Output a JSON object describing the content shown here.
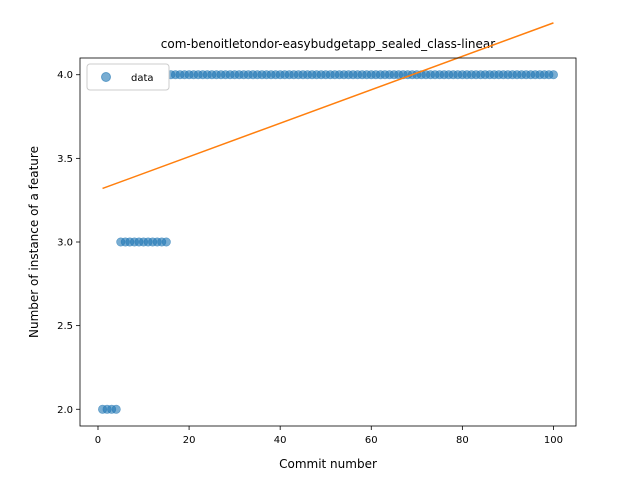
{
  "chart_data": {
    "type": "scatter",
    "title": "com-benoitletondor-easybudgetapp_sealed_class-linear",
    "xlabel": "Commit number",
    "ylabel": "Number of instance of a feature",
    "xlim": [
      -3.95,
      104.95
    ],
    "ylim": [
      1.9,
      4.1
    ],
    "xticks": [
      0,
      20,
      40,
      60,
      80,
      100
    ],
    "yticks": [
      2.0,
      2.5,
      3.0,
      3.5,
      4.0
    ],
    "xtick_labels": [
      "0",
      "20",
      "40",
      "60",
      "80",
      "100"
    ],
    "ytick_labels": [
      "2.0",
      "2.5",
      "3.0",
      "3.5",
      "4.0"
    ],
    "legend": {
      "position": "upper-left",
      "entries": [
        {
          "label": "data",
          "marker": "circle",
          "color": "#1f77b4"
        }
      ]
    },
    "series": [
      {
        "name": "data",
        "kind": "scatter",
        "color": "#1f77b4",
        "alpha": 0.6,
        "segments": [
          {
            "x_from": 1,
            "x_to": 4,
            "y": 2
          },
          {
            "x_from": 5,
            "x_to": 15,
            "y": 3
          },
          {
            "x_from": 16,
            "x_to": 100,
            "y": 4
          }
        ]
      },
      {
        "kind": "line",
        "color": "#ff7f0e",
        "x": [
          1,
          100
        ],
        "y": [
          3.32,
          4.31
        ]
      }
    ],
    "grid": false
  }
}
